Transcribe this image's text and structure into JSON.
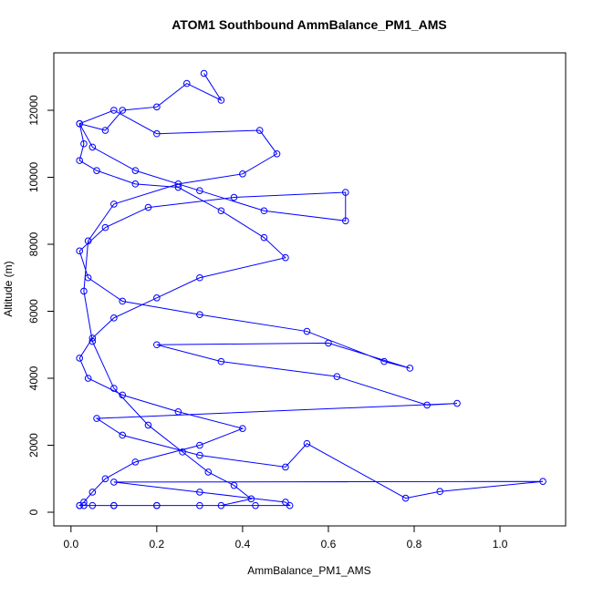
{
  "chart_data": {
    "type": "line",
    "title": "ATOM1 Southbound AmmBalance_PM1_AMS",
    "x_label": "AmmBalance_PM1_AMS",
    "y_label": "Altitude (m)",
    "x": [
      0.31,
      0.35,
      0.27,
      0.2,
      0.12,
      0.08,
      0.02,
      0.03,
      0.02,
      0.06,
      0.15,
      0.25,
      0.35,
      0.45,
      0.5,
      0.3,
      0.2,
      0.1,
      0.05,
      0.02,
      0.04,
      0.12,
      0.25,
      0.4,
      0.3,
      0.15,
      0.08,
      0.05,
      0.03,
      0.02,
      0.1,
      0.2,
      0.3,
      0.43,
      0.51,
      0.5,
      0.3,
      0.1,
      1.1,
      0.86,
      0.78,
      0.55,
      0.5,
      0.3,
      0.12,
      0.06,
      0.9,
      0.83,
      0.62,
      0.35,
      0.2,
      0.6,
      0.79,
      0.73,
      0.55,
      0.3,
      0.12,
      0.04,
      0.02,
      0.08,
      0.18,
      0.38,
      0.64,
      0.64,
      0.45,
      0.3,
      0.15,
      0.05,
      0.02,
      0.1,
      0.2,
      0.44,
      0.48,
      0.4,
      0.25,
      0.1,
      0.04,
      0.03,
      0.05,
      0.1,
      0.18,
      0.26,
      0.32,
      0.38,
      0.42,
      0.35,
      0.2,
      0.1,
      0.05,
      0.03,
      0.02
    ],
    "series": [
      {
        "color": "#0000ff",
        "values": [
          13100,
          12300,
          12800,
          12100,
          12000,
          11400,
          11600,
          11000,
          10500,
          10200,
          9800,
          9700,
          9000,
          8200,
          7600,
          7000,
          6400,
          5800,
          5200,
          4600,
          4000,
          3500,
          3000,
          2500,
          2000,
          1500,
          1000,
          600,
          300,
          200,
          200,
          200,
          200,
          200,
          200,
          300,
          600,
          900,
          920,
          620,
          420,
          2050,
          1350,
          1700,
          2300,
          2800,
          3250,
          3200,
          4050,
          4500,
          5000,
          5050,
          4300,
          4500,
          5400,
          5900,
          6300,
          7000,
          7800,
          8500,
          9100,
          9400,
          9550,
          8700,
          9000,
          9600,
          10200,
          10900,
          11600,
          12000,
          11300,
          11400,
          10700,
          10100,
          9800,
          9200,
          8100,
          6600,
          5100,
          3700,
          2600,
          1800,
          1200,
          800,
          400,
          200,
          200,
          200,
          200,
          200,
          200
        ]
      }
    ],
    "xlim": [
      -0.04,
      1.153
    ],
    "ylim": [
      -408,
      13714
    ],
    "xticks": [
      {
        "value": 0,
        "label": "0.0"
      },
      {
        "value": 0.2,
        "label": "0.2"
      },
      {
        "value": 0.4,
        "label": "0.4"
      },
      {
        "value": 0.6,
        "label": "0.6"
      },
      {
        "value": 0.8,
        "label": "0.8"
      },
      {
        "value": 1.0,
        "label": "1.0"
      }
    ],
    "yticks": [
      0,
      2000,
      4000,
      6000,
      8000,
      10000,
      12000
    ]
  }
}
